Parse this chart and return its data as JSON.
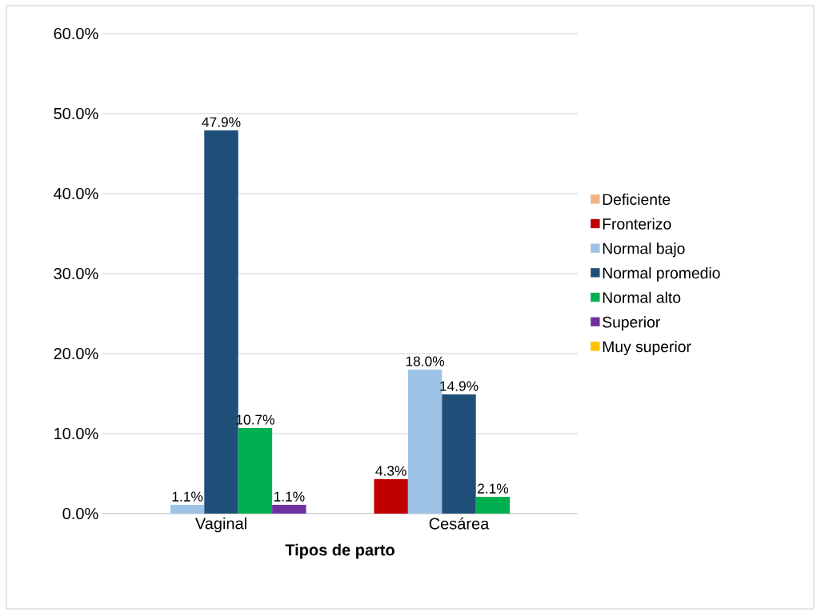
{
  "chart_data": {
    "type": "bar",
    "xlabel": "Tipos de parto",
    "categories": [
      "Vaginal",
      "Cesárea"
    ],
    "series": [
      {
        "name": "Deficiente",
        "color": "#f4b183",
        "values": [
          null,
          null
        ],
        "value_labels": [
          null,
          null
        ]
      },
      {
        "name": "Fronterizo",
        "color": "#c00000",
        "values": [
          null,
          4.3
        ],
        "value_labels": [
          null,
          "4.3%"
        ]
      },
      {
        "name": "Normal bajo",
        "color": "#9dc3e6",
        "values": [
          1.1,
          18.0
        ],
        "value_labels": [
          "1.1%",
          "18.0%"
        ]
      },
      {
        "name": "Normal promedio",
        "color": "#1f4e79",
        "values": [
          47.9,
          14.9
        ],
        "value_labels": [
          "47.9%",
          "14.9%"
        ]
      },
      {
        "name": "Normal alto",
        "color": "#00b050",
        "values": [
          10.7,
          2.1
        ],
        "value_labels": [
          "10.7%",
          "2.1%"
        ]
      },
      {
        "name": "Superior",
        "color": "#7030a0",
        "values": [
          1.1,
          null
        ],
        "value_labels": [
          "1.1%",
          null
        ]
      },
      {
        "name": "Muy superior",
        "color": "#ffc000",
        "values": [
          null,
          null
        ],
        "value_labels": [
          null,
          null
        ]
      }
    ],
    "ylim": [
      0,
      60
    ],
    "yticks": [
      {
        "value": 0,
        "label": "0.0%"
      },
      {
        "value": 10,
        "label": "10.0%"
      },
      {
        "value": 20,
        "label": "20.0%"
      },
      {
        "value": 30,
        "label": "30.0%"
      },
      {
        "value": 40,
        "label": "40.0%"
      },
      {
        "value": 50,
        "label": "50.0%"
      },
      {
        "value": 60,
        "label": "60.0%"
      }
    ],
    "grid": "y",
    "legend": "right"
  }
}
